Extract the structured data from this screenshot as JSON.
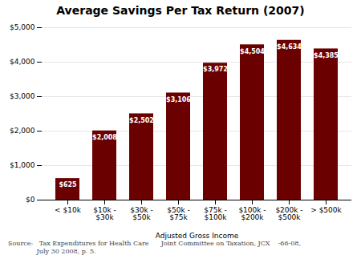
{
  "chart_data": {
    "type": "bar",
    "title": "Average Savings Per Tax Return (2007)",
    "categories": [
      "< $10k",
      "$10k -\n$30k",
      "$30k -\n$50k",
      "$50k -\n$75k",
      "$75k -\n$100k",
      "$100k -\n$200k",
      "$200k -\n$500k",
      "> $500k"
    ],
    "values": [
      625,
      2008,
      2502,
      3106,
      3972,
      4504,
      4634,
      4385
    ],
    "value_labels": [
      "$625",
      "$2,008",
      "$2,502",
      "$3,106",
      "$3,972",
      "$4,504",
      "$4,634",
      "$4,385"
    ],
    "data_labels": true,
    "color": "#6B0000",
    "xlabel": "Adjusted Gross Income",
    "ylim": [
      0,
      5000
    ],
    "yticks": [
      {
        "value": 0,
        "label": "$0"
      },
      {
        "value": 1000,
        "label": "$1,000"
      },
      {
        "value": 2000,
        "label": "$2,000"
      },
      {
        "value": 3000,
        "label": "$3,000"
      },
      {
        "value": 4000,
        "label": "$4,000"
      },
      {
        "value": 5000,
        "label": "$5,000"
      }
    ],
    "grid": true,
    "annotations": [
      "Source:   Tax Expenditures for Health Care      Joint Committee on Taxation, JCX    -66-08,\n              July 30 2008, p. 5."
    ]
  }
}
